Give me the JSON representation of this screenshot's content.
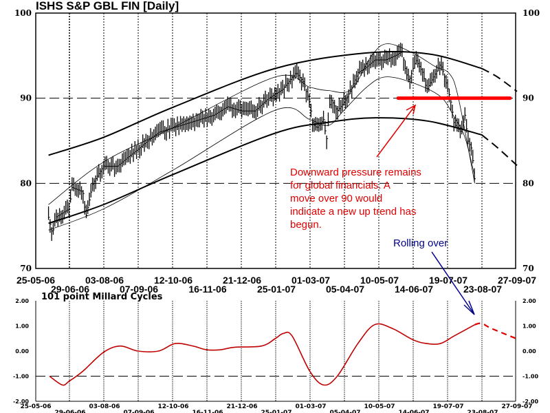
{
  "colors": {
    "price": "#000000",
    "resistance": "#ff0000",
    "annotation": "#e00000",
    "cycle": "#c00000",
    "rolling": "#00008b"
  },
  "chart_data": [
    {
      "type": "line",
      "title": "ISHS S&P GBL FIN  [Daily]",
      "x_unit": "days since 25-05-06",
      "ylim": [
        70,
        100
      ],
      "yticks": [
        "100",
        "90",
        "80",
        "70"
      ],
      "ytick_values": [
        100,
        90,
        80,
        70
      ],
      "date_labels_row1": [
        "25-05-06",
        "03-08-06",
        "12-10-06",
        "21-12-06",
        "01-03-07",
        "10-05-07",
        "19-07-07",
        "27-09-07"
      ],
      "date_labels_row2": [
        "29-06-06",
        "07-09-06",
        "16-11-06",
        "25-01-07",
        "05-04-07",
        "14-06-07",
        "23-08-07"
      ],
      "price_series": [
        [
          13,
          76
        ],
        [
          17,
          74
        ],
        [
          20,
          76
        ],
        [
          34,
          77
        ],
        [
          37,
          79.5
        ],
        [
          48,
          79
        ],
        [
          51,
          76
        ],
        [
          58,
          80
        ],
        [
          69,
          82
        ],
        [
          83,
          82
        ],
        [
          93,
          83
        ],
        [
          104,
          84
        ],
        [
          114,
          85
        ],
        [
          125,
          86
        ],
        [
          139,
          86.5
        ],
        [
          153,
          87
        ],
        [
          167,
          87.5
        ],
        [
          181,
          88
        ],
        [
          195,
          89
        ],
        [
          209,
          88.5
        ],
        [
          223,
          88.5
        ],
        [
          237,
          90
        ],
        [
          251,
          91
        ],
        [
          265,
          93
        ],
        [
          272,
          92
        ],
        [
          279,
          89.5
        ],
        [
          282,
          87
        ],
        [
          286,
          86.5
        ],
        [
          293,
          87.5
        ],
        [
          296,
          85
        ],
        [
          300,
          90
        ],
        [
          307,
          88.5
        ],
        [
          314,
          89.5
        ],
        [
          321,
          91
        ],
        [
          328,
          93
        ],
        [
          335,
          93.5
        ],
        [
          345,
          94.5
        ],
        [
          356,
          94.5
        ],
        [
          366,
          95
        ],
        [
          373,
          95.5
        ],
        [
          377,
          93
        ],
        [
          380,
          92
        ],
        [
          387,
          94.5
        ],
        [
          394,
          93
        ],
        [
          398,
          91
        ],
        [
          405,
          92.5
        ],
        [
          412,
          94
        ],
        [
          415,
          93
        ],
        [
          422,
          90
        ],
        [
          426,
          87
        ],
        [
          433,
          86
        ],
        [
          437,
          88
        ],
        [
          440,
          85
        ],
        [
          444,
          84
        ],
        [
          447,
          80
        ]
      ],
      "outer_upper_band": [
        [
          13,
          83.3
        ],
        [
          69,
          85.4
        ],
        [
          139,
          88.9
        ],
        [
          244,
          93.5
        ],
        [
          335,
          95.3
        ],
        [
          400,
          95.2
        ],
        [
          454,
          93.5
        ]
      ],
      "outer_upper_projection": [
        [
          454,
          93.5
        ],
        [
          470,
          92.5
        ],
        [
          490,
          90.8
        ]
      ],
      "outer_lower_band": [
        [
          13,
          75.3
        ],
        [
          69,
          77.5
        ],
        [
          139,
          81
        ],
        [
          244,
          85.9
        ],
        [
          300,
          87.2
        ],
        [
          346,
          87.7
        ],
        [
          400,
          87.3
        ],
        [
          454,
          85.7
        ]
      ],
      "outer_lower_projection": [
        [
          454,
          85.7
        ],
        [
          470,
          84.2
        ],
        [
          490,
          82.1
        ]
      ],
      "inner_upper_band": [
        [
          13,
          77.5
        ],
        [
          69,
          82.5
        ],
        [
          139,
          86.5
        ],
        [
          244,
          92.5
        ],
        [
          279,
          91.3
        ],
        [
          298,
          90.9
        ],
        [
          321,
          91
        ],
        [
          342,
          95
        ],
        [
          358,
          96.4
        ],
        [
          384,
          95.3
        ],
        [
          407,
          93.7
        ],
        [
          421,
          92.9
        ],
        [
          430,
          90.2
        ],
        [
          447,
          80
        ]
      ],
      "inner_lower_band": [
        [
          13,
          74.5
        ],
        [
          69,
          77
        ],
        [
          139,
          81.5
        ],
        [
          244,
          88.6
        ],
        [
          279,
          87.5
        ],
        [
          298,
          86.8
        ],
        [
          314,
          88.6
        ],
        [
          337,
          91.3
        ],
        [
          356,
          92.5
        ],
        [
          384,
          91.8
        ],
        [
          412,
          90.2
        ],
        [
          426,
          87.8
        ],
        [
          437,
          85.4
        ],
        [
          447,
          80.8
        ]
      ],
      "resistance_line": {
        "value": 90,
        "from_day": 369,
        "to_day": 483
      },
      "annotation": [
        "Downward pressure remains",
        "for global financials.  A",
        "move over 90 would",
        "indicate a new up trend has",
        "begun."
      ],
      "annotation2": "Rolling over"
    },
    {
      "type": "line",
      "title": "101 point Millard Cycles",
      "ylim": [
        -2,
        2
      ],
      "yticks": [
        "2.00",
        "1.00",
        "0.00",
        "-1.00",
        "-2.00"
      ],
      "ytick_values": [
        2,
        1,
        0,
        -1,
        -2
      ],
      "series": [
        [
          14,
          -1.0
        ],
        [
          27,
          -1.35
        ],
        [
          34,
          -1.2
        ],
        [
          48,
          -0.8
        ],
        [
          69,
          -0.05
        ],
        [
          86,
          0.2
        ],
        [
          104,
          0.0
        ],
        [
          125,
          0.0
        ],
        [
          142,
          0.3
        ],
        [
          160,
          0.2
        ],
        [
          174,
          0.05
        ],
        [
          188,
          0.05
        ],
        [
          202,
          0.15
        ],
        [
          230,
          0.2
        ],
        [
          244,
          0.5
        ],
        [
          252,
          0.7
        ],
        [
          261,
          0.6
        ],
        [
          279,
          -0.8
        ],
        [
          293,
          -1.35
        ],
        [
          307,
          -1.0
        ],
        [
          328,
          0.3
        ],
        [
          345,
          1.05
        ],
        [
          363,
          0.9
        ],
        [
          384,
          0.45
        ],
        [
          398,
          0.3
        ],
        [
          412,
          0.3
        ],
        [
          426,
          0.6
        ],
        [
          447,
          1.05
        ]
      ],
      "projection": [
        [
          447,
          1.05
        ],
        [
          454,
          1.1
        ],
        [
          464,
          0.9
        ],
        [
          489,
          0.5
        ]
      ]
    }
  ]
}
